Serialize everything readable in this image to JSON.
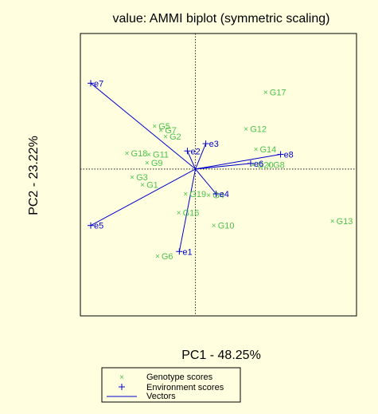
{
  "chart_data": {
    "type": "scatter",
    "title": "value: AMMI biplot (symmetric scaling)",
    "xlabel": "PC1 - 48.25%",
    "ylabel": "PC2 - 23.22%",
    "xlim": [
      -2.0,
      2.8
    ],
    "ylim": [
      -2.6,
      2.4
    ],
    "reference_lines": {
      "x": 0,
      "y": 0,
      "style": "dotted"
    },
    "legend": {
      "placement": "bottom",
      "entries": [
        "Genotype scores",
        "Environment scores",
        "Vectors"
      ]
    },
    "colors": {
      "genotype": "#4CC24C",
      "environment": "#0000CC",
      "vector": "#0000CC",
      "background": "#FFFFE0"
    },
    "genotypes": [
      {
        "label": "G17",
        "x": 1.22,
        "y": 1.36
      },
      {
        "label": "G12",
        "x": 0.88,
        "y": 0.71
      },
      {
        "label": "G14",
        "x": 1.05,
        "y": 0.35
      },
      {
        "label": "G8",
        "x": 1.28,
        "y": 0.08
      },
      {
        "label": "G20",
        "x": 1.0,
        "y": 0.08
      },
      {
        "label": "G5",
        "x": -0.71,
        "y": 0.76
      },
      {
        "label": "G7",
        "x": -0.6,
        "y": 0.69
      },
      {
        "label": "G2",
        "x": -0.52,
        "y": 0.58
      },
      {
        "label": "G18",
        "x": -1.19,
        "y": 0.28
      },
      {
        "label": "G11",
        "x": -0.81,
        "y": 0.26
      },
      {
        "label": "G9",
        "x": -0.84,
        "y": 0.11
      },
      {
        "label": "G3",
        "x": -1.1,
        "y": -0.14
      },
      {
        "label": "G1",
        "x": -0.92,
        "y": -0.28
      },
      {
        "label": "G19",
        "x": -0.17,
        "y": -0.44
      },
      {
        "label": "G4",
        "x": 0.23,
        "y": -0.46
      },
      {
        "label": "G16",
        "x": -0.29,
        "y": -0.77
      },
      {
        "label": "G10",
        "x": 0.32,
        "y": -1.0
      },
      {
        "label": "G13",
        "x": 2.38,
        "y": -0.92
      },
      {
        "label": "G6",
        "x": -0.66,
        "y": -1.54
      }
    ],
    "environments": [
      {
        "label": "e7",
        "x": -1.82,
        "y": 1.52
      },
      {
        "label": "e2",
        "x": -0.14,
        "y": 0.32
      },
      {
        "label": "e3",
        "x": 0.18,
        "y": 0.45
      },
      {
        "label": "e8",
        "x": 1.48,
        "y": 0.26
      },
      {
        "label": "e6",
        "x": 0.96,
        "y": 0.1
      },
      {
        "label": "e4",
        "x": 0.36,
        "y": -0.44
      },
      {
        "label": "e5",
        "x": -1.82,
        "y": -1.0
      },
      {
        "label": "e1",
        "x": -0.28,
        "y": -1.46
      }
    ]
  }
}
